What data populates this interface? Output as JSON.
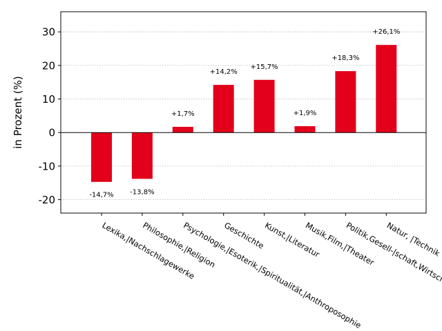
{
  "chart_data": {
    "type": "bar",
    "ylabel": "in Prozent (%)",
    "ylim": [
      -24,
      36
    ],
    "yticks": [
      -20,
      -10,
      0,
      10,
      20,
      30
    ],
    "ytick_labels": [
      "-20",
      "-10",
      "0",
      "10",
      "20",
      "30"
    ],
    "grid": true,
    "bar_color": "#e2001a",
    "categories": [
      "Lexika,|Nachschlagewerke",
      "Philosophie,|Religion",
      "Psychologie,|Esoterik,|Spiritualität,|Anthroposophie",
      "Geschichte",
      "Kunst,|Literatur",
      "Musik,Film,|Theater",
      "Politik,Gesell-|schaft,Wirtschaft",
      "Natur, |Technik"
    ],
    "values": [
      -14.7,
      -13.8,
      1.7,
      14.2,
      15.7,
      1.9,
      18.3,
      26.1
    ],
    "data_labels": [
      "-14,7%",
      "-13,8%",
      "+1,7%",
      "+14,2%",
      "+15,7%",
      "+1,9%",
      "+18,3%",
      "+26,1%"
    ]
  }
}
